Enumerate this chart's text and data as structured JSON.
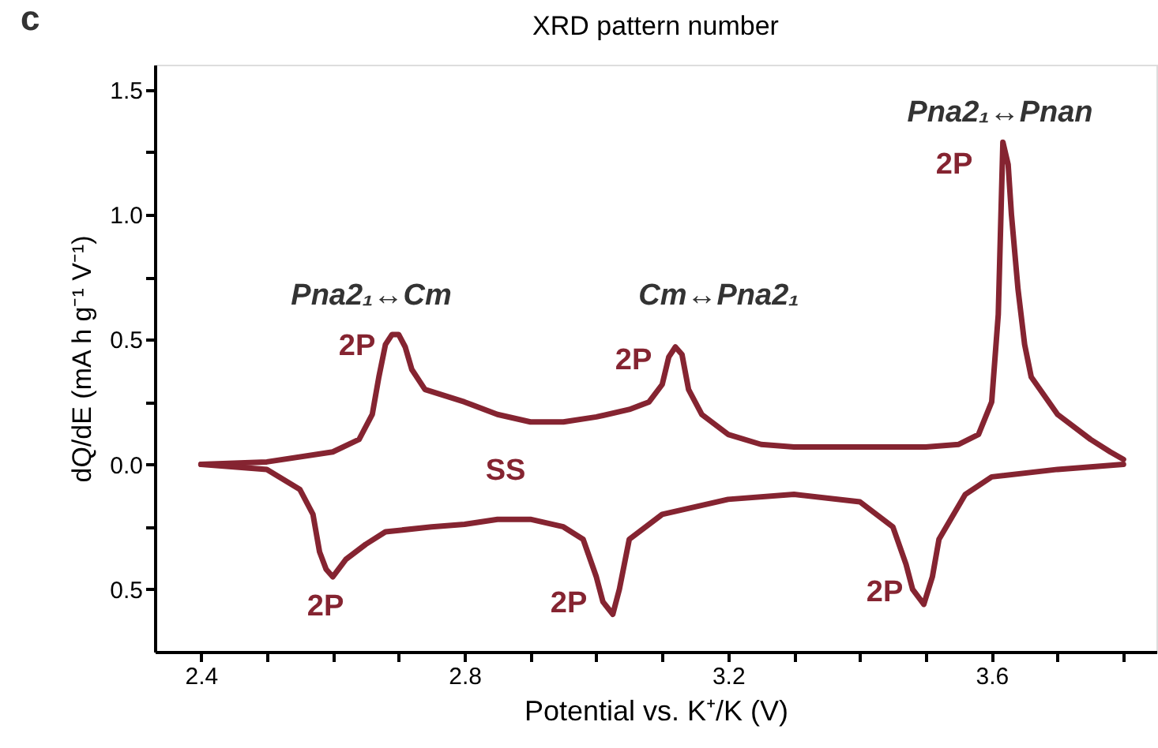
{
  "chart_data": {
    "type": "line",
    "x2label": "XRD pattern number",
    "xlabel": "Potential vs. K⁺/K (V)",
    "ylabel": "dQ/dE (mA h g⁻¹ V⁻¹)",
    "xlim": [
      2.33,
      3.85
    ],
    "ylim": [
      -0.75,
      1.6
    ],
    "xticks": [
      {
        "value": 2.4,
        "label": "2.4"
      },
      {
        "value": 2.5,
        "label": null
      },
      {
        "value": 2.6,
        "label": null
      },
      {
        "value": 2.7,
        "label": null
      },
      {
        "value": 2.8,
        "label": "2.8"
      },
      {
        "value": 2.9,
        "label": null
      },
      {
        "value": 3.0,
        "label": null
      },
      {
        "value": 3.1,
        "label": null
      },
      {
        "value": 3.2,
        "label": "3.2"
      },
      {
        "value": 3.3,
        "label": null
      },
      {
        "value": 3.4,
        "label": null
      },
      {
        "value": 3.5,
        "label": null
      },
      {
        "value": 3.6,
        "label": "3.6"
      },
      {
        "value": 3.7,
        "label": null
      },
      {
        "value": 3.8,
        "label": null
      }
    ],
    "yticks": [
      {
        "value": -0.5,
        "label": "0.5"
      },
      {
        "value": -0.25,
        "label": null
      },
      {
        "value": 0.0,
        "label": "0.0"
      },
      {
        "value": 0.25,
        "label": null
      },
      {
        "value": 0.5,
        "label": "0.5"
      },
      {
        "value": 0.75,
        "label": null
      },
      {
        "value": 1.0,
        "label": "1.0"
      },
      {
        "value": 1.25,
        "label": null
      },
      {
        "value": 1.5,
        "label": "1.5"
      }
    ],
    "grid": false,
    "marker": "none",
    "line_style": "solid",
    "series": [
      {
        "color": "#852431",
        "x": [
          2.4,
          2.5,
          2.6,
          2.64,
          2.66,
          2.67,
          2.68,
          2.69,
          2.7,
          2.71,
          2.72,
          2.74,
          2.8,
          2.85,
          2.9,
          2.95,
          3.0,
          3.05,
          3.08,
          3.1,
          3.11,
          3.12,
          3.13,
          3.14,
          3.16,
          3.2,
          3.25,
          3.3,
          3.4,
          3.5,
          3.55,
          3.58,
          3.6,
          3.61,
          3.617,
          3.625,
          3.63,
          3.64,
          3.65,
          3.66,
          3.7,
          3.75,
          3.78,
          3.8
        ],
        "values": [
          0.0,
          0.01,
          0.05,
          0.1,
          0.2,
          0.35,
          0.48,
          0.52,
          0.52,
          0.47,
          0.38,
          0.3,
          0.25,
          0.2,
          0.17,
          0.17,
          0.19,
          0.22,
          0.25,
          0.32,
          0.43,
          0.47,
          0.44,
          0.3,
          0.2,
          0.12,
          0.08,
          0.07,
          0.07,
          0.07,
          0.08,
          0.12,
          0.25,
          0.6,
          1.29,
          1.2,
          1.0,
          0.7,
          0.48,
          0.35,
          0.2,
          0.1,
          0.05,
          0.02
        ]
      },
      {
        "color": "#852431",
        "x": [
          2.4,
          2.5,
          2.55,
          2.57,
          2.58,
          2.59,
          2.6,
          2.62,
          2.65,
          2.68,
          2.75,
          2.8,
          2.85,
          2.9,
          2.95,
          2.98,
          3.0,
          3.01,
          3.025,
          3.035,
          3.05,
          3.1,
          3.2,
          3.3,
          3.4,
          3.45,
          3.47,
          3.48,
          3.497,
          3.51,
          3.52,
          3.56,
          3.6,
          3.7,
          3.8
        ],
        "values": [
          0.0,
          -0.02,
          -0.1,
          -0.2,
          -0.35,
          -0.42,
          -0.45,
          -0.38,
          -0.32,
          -0.27,
          -0.25,
          -0.24,
          -0.22,
          -0.22,
          -0.25,
          -0.3,
          -0.45,
          -0.55,
          -0.6,
          -0.5,
          -0.3,
          -0.2,
          -0.14,
          -0.12,
          -0.15,
          -0.25,
          -0.4,
          -0.5,
          -0.56,
          -0.45,
          -0.3,
          -0.12,
          -0.05,
          -0.02,
          0.0
        ]
      }
    ],
    "annotations": [
      "c",
      "Pna2₁↔Cm",
      "Cm↔Pna2₁",
      "Pna2₁↔Pnan",
      "2P",
      "2P",
      "2P",
      "2P",
      "2P",
      "2P",
      "SS"
    ]
  }
}
